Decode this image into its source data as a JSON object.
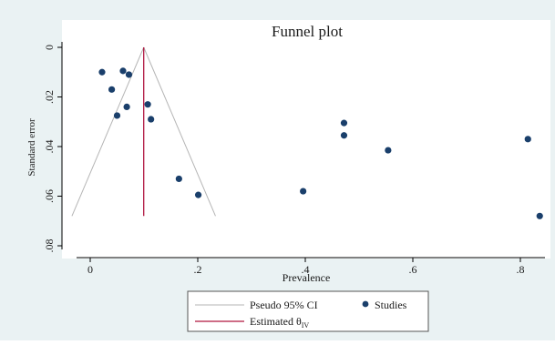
{
  "chart_data": {
    "type": "scatter",
    "title": "Funnel plot",
    "xlabel": "Prevalence",
    "ylabel": "Standard error",
    "xlim": [
      -0.04,
      0.84
    ],
    "ylim": [
      0.08,
      0.0
    ],
    "y_axis_reversed": true,
    "grid": false,
    "x_ticks": [
      {
        "value": 0,
        "label": "0"
      },
      {
        "value": 0.2,
        "label": ".2"
      },
      {
        "value": 0.4,
        "label": ".4"
      },
      {
        "value": 0.6,
        "label": ".6"
      },
      {
        "value": 0.8,
        "label": ".8"
      }
    ],
    "y_ticks": [
      {
        "value": 0,
        "label": "0"
      },
      {
        "value": 0.02,
        "label": ".02"
      },
      {
        "value": 0.04,
        "label": ".04"
      },
      {
        "value": 0.06,
        "label": ".06"
      },
      {
        "value": 0.08,
        "label": ".08"
      }
    ],
    "studies": [
      {
        "x": 0.022,
        "y": 0.01
      },
      {
        "x": 0.061,
        "y": 0.0095
      },
      {
        "x": 0.072,
        "y": 0.011
      },
      {
        "x": 0.04,
        "y": 0.017
      },
      {
        "x": 0.05,
        "y": 0.0275
      },
      {
        "x": 0.068,
        "y": 0.024
      },
      {
        "x": 0.107,
        "y": 0.023
      },
      {
        "x": 0.113,
        "y": 0.029
      },
      {
        "x": 0.165,
        "y": 0.053
      },
      {
        "x": 0.201,
        "y": 0.0595
      },
      {
        "x": 0.396,
        "y": 0.058
      },
      {
        "x": 0.472,
        "y": 0.0305
      },
      {
        "x": 0.472,
        "y": 0.0355
      },
      {
        "x": 0.554,
        "y": 0.0415
      },
      {
        "x": 0.814,
        "y": 0.037
      },
      {
        "x": 0.836,
        "y": 0.068
      }
    ],
    "estimated_theta": 0.0995,
    "pseudo_ci": {
      "apex": {
        "x": 0.0995,
        "y": 0.0
      },
      "left_base": {
        "x": -0.034,
        "y": 0.068
      },
      "right_base": {
        "x": 0.233,
        "y": 0.068
      }
    },
    "estimate_line_ylim": [
      0.0,
      0.068
    ],
    "legend": {
      "placement": "bottom",
      "items": [
        {
          "key": "pseudo_ci",
          "label": "Pseudo 95% CI"
        },
        {
          "key": "studies",
          "label": "Studies"
        },
        {
          "key": "estimate",
          "label": "Estimated θ",
          "subscript": "IV"
        }
      ]
    },
    "colors": {
      "background": "#eaf2f3",
      "plot_background": "#ffffff",
      "studies": "#1a3f6b",
      "pseudo_ci": "#b5b5b5",
      "estimate": "#b0163f",
      "axis": "#000000"
    }
  }
}
